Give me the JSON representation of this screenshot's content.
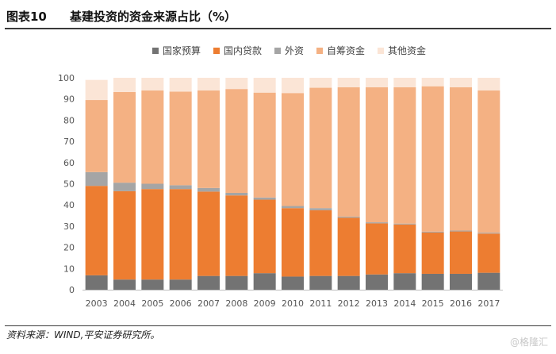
{
  "header": {
    "figure_no": "图表10",
    "title": "基建投资的资金来源占比（%）"
  },
  "footer": {
    "source": "资料来源：WIND,平安证券研究所。",
    "watermark": "@格隆汇"
  },
  "chart_data": {
    "type": "bar",
    "stacked": true,
    "title": "基建投资的资金来源占比（%）",
    "xlabel": "",
    "ylabel": "",
    "ylim": [
      0,
      100
    ],
    "yticks": [
      0,
      10,
      20,
      30,
      40,
      50,
      60,
      70,
      80,
      90,
      100
    ],
    "grid": false,
    "legend_position": "top",
    "categories": [
      "2003",
      "2004",
      "2005",
      "2006",
      "2007",
      "2008",
      "2009",
      "2010",
      "2011",
      "2012",
      "2013",
      "2014",
      "2015",
      "2016",
      "2017"
    ],
    "series": [
      {
        "name": "国家预算",
        "color": "#737373",
        "values": [
          6.8,
          4.8,
          4.8,
          4.8,
          6.5,
          6.5,
          7.8,
          6.2,
          6.5,
          6.5,
          7.2,
          7.8,
          7.5,
          7.5,
          8.0
        ]
      },
      {
        "name": "国内贷款",
        "color": "#ed7d31",
        "values": [
          42.2,
          41.7,
          42.7,
          42.7,
          39.8,
          38.0,
          34.7,
          32.3,
          31.0,
          27.5,
          24.1,
          23.0,
          19.5,
          20.0,
          18.5
        ]
      },
      {
        "name": "外资",
        "color": "#a5a5a5",
        "values": [
          6.5,
          4.0,
          2.5,
          1.8,
          1.7,
          1.2,
          1.0,
          1.0,
          1.0,
          0.5,
          0.5,
          0.4,
          0.4,
          0.4,
          0.4
        ]
      },
      {
        "name": "自筹资金",
        "color": "#f4b183",
        "values": [
          34.0,
          42.8,
          44.0,
          44.2,
          46.0,
          49.0,
          49.5,
          53.3,
          56.8,
          61.0,
          63.7,
          64.3,
          68.6,
          67.6,
          67.1
        ]
      },
      {
        "name": "其他资金",
        "color": "#fbe5d6",
        "values": [
          9.5,
          6.7,
          6.0,
          6.5,
          6.0,
          5.3,
          7.0,
          7.2,
          4.7,
          4.5,
          4.5,
          4.5,
          4.0,
          4.5,
          6.0
        ]
      }
    ]
  }
}
